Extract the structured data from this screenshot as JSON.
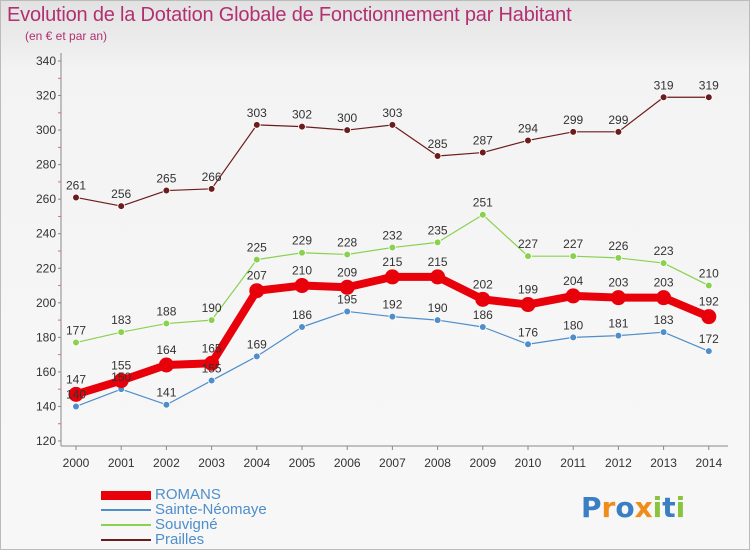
{
  "chart_data": {
    "type": "line",
    "title": "Evolution de la Dotation Globale de Fonctionnement par Habitant",
    "subtitle": "(en € et par an)",
    "categories": [
      "2000",
      "2001",
      "2002",
      "2003",
      "2004",
      "2005",
      "2006",
      "2007",
      "2008",
      "2009",
      "2010",
      "2011",
      "2012",
      "2013",
      "2014"
    ],
    "ylim": [
      120,
      340
    ],
    "yticks": [
      120,
      140,
      160,
      180,
      200,
      220,
      240,
      260,
      280,
      300,
      320,
      340
    ],
    "grid": false,
    "legend_position": "bottom-left",
    "series": [
      {
        "name": "ROMANS",
        "color": "#e8000a",
        "values": [
          147,
          155,
          164,
          165,
          207,
          210,
          209,
          215,
          215,
          202,
          199,
          204,
          203,
          203,
          192
        ]
      },
      {
        "name": "Sainte-Néomaye",
        "color": "#4f8ec9",
        "values": [
          140,
          150,
          141,
          155,
          169,
          186,
          195,
          192,
          190,
          186,
          176,
          180,
          181,
          183,
          172
        ]
      },
      {
        "name": "Souvigné",
        "color": "#8ad14f",
        "values": [
          177,
          183,
          188,
          190,
          225,
          229,
          228,
          232,
          235,
          251,
          227,
          227,
          226,
          223,
          210
        ]
      },
      {
        "name": "Prailles",
        "color": "#6b1c1c",
        "values": [
          261,
          256,
          265,
          266,
          303,
          302,
          300,
          303,
          285,
          287,
          294,
          299,
          299,
          319,
          319
        ]
      }
    ]
  },
  "logo": {
    "text": "Proxiti"
  }
}
